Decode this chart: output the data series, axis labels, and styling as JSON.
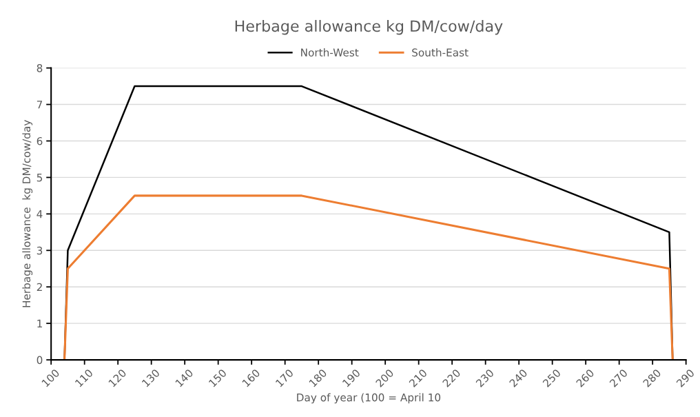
{
  "chart_data": {
    "type": "line",
    "title": "Herbage allowance kg DM/cow/day",
    "xlabel": "Day of year (100 = April 10",
    "ylabel": "Herbage allowance  kg DM/cow/day",
    "x": [
      104,
      105,
      125,
      175,
      285,
      286
    ],
    "series": [
      {
        "name": "North-West",
        "color": "#000000",
        "values": [
          0,
          3,
          7.5,
          7.5,
          3.5,
          0
        ]
      },
      {
        "name": "South-East",
        "color": "#ed7d31",
        "values": [
          0,
          2.5,
          4.5,
          4.5,
          2.5,
          0
        ]
      }
    ],
    "xlim": [
      100,
      290
    ],
    "xticks": [
      100,
      110,
      120,
      130,
      140,
      150,
      160,
      170,
      180,
      190,
      200,
      210,
      220,
      230,
      240,
      250,
      260,
      270,
      280,
      290
    ],
    "ylim": [
      0,
      8
    ],
    "yticks": [
      0,
      1,
      2,
      3,
      4,
      5,
      6,
      7,
      8
    ],
    "grid": "y",
    "legend": "top",
    "marker": "none",
    "line_style": "solid"
  }
}
